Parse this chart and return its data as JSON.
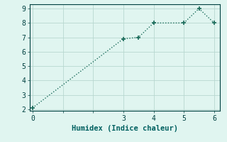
{
  "x": [
    0,
    3,
    3.5,
    4,
    5,
    5.5,
    6
  ],
  "y": [
    2.1,
    6.9,
    7.0,
    8.0,
    8.0,
    9.0,
    8.0
  ],
  "line_color": "#1a6b5a",
  "bg_color": "#e0f5f0",
  "grid_color": "#c8e8e0",
  "grid_color_major": "#b8d8d0",
  "xlabel": "Humidex (Indice chaleur)",
  "xlabel_color": "#006060",
  "xlabel_fontsize": 7.5,
  "tick_color": "#004040",
  "tick_fontsize": 7,
  "xlim": [
    -0.1,
    6.2
  ],
  "ylim": [
    1.9,
    9.3
  ],
  "xticks": [
    0,
    1,
    2,
    3,
    4,
    5,
    6
  ],
  "yticks": [
    2,
    3,
    4,
    5,
    6,
    7,
    8,
    9
  ],
  "xtick_labels": [
    "0",
    "",
    "",
    "3",
    "4",
    "5",
    "6"
  ],
  "ytick_labels": [
    "2",
    "3",
    "4",
    "5",
    "6",
    "7",
    "8",
    "9"
  ]
}
